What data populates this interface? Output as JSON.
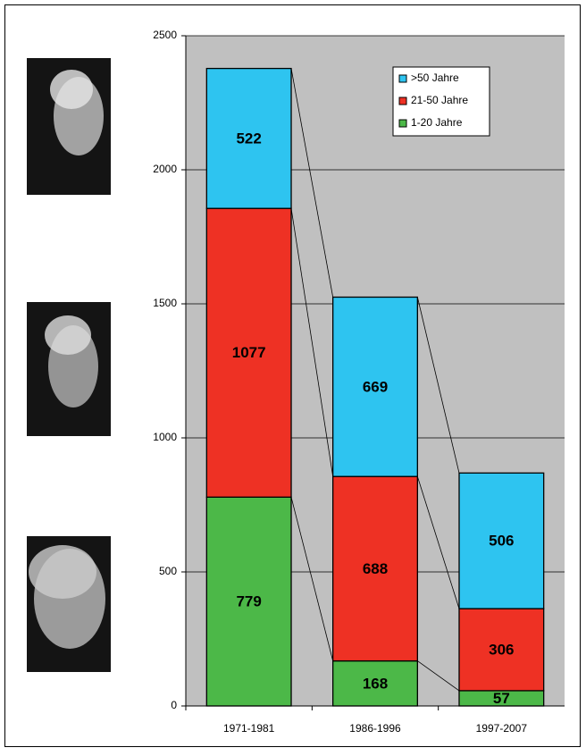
{
  "chart_data": {
    "type": "stacked-bar",
    "categories": [
      "1971-1981",
      "1986-1996",
      "1997-2007"
    ],
    "series": [
      {
        "name": "1-20 Jahre",
        "color": "#4cb848",
        "values": [
          779,
          168,
          57
        ]
      },
      {
        "name": "21-50 Jahre",
        "color": "#ee3124",
        "values": [
          1077,
          688,
          306
        ]
      },
      {
        "name": ">50 Jahre",
        "color": "#2ec4f0",
        "values": [
          522,
          669,
          506
        ]
      }
    ],
    "ylim": [
      0,
      2500
    ],
    "yticks": [
      0,
      500,
      1000,
      1500,
      2000,
      2500
    ],
    "grid": true,
    "legend": "top-right"
  }
}
